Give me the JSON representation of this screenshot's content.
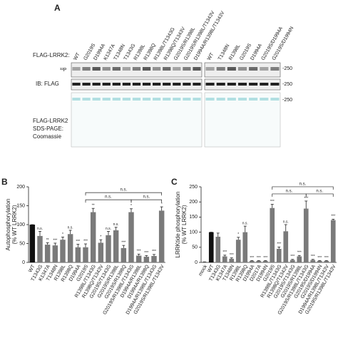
{
  "panel_a": {
    "label": "A",
    "row_label": "FLAG-LRRK2:",
    "p32": "³²P",
    "ib": "IB: FLAG",
    "coomassie": [
      "FLAG-LRRK2",
      "SDS-PAGE:",
      "Coomassie"
    ],
    "marker": "-250",
    "left_lanes": [
      "WT",
      "G2019S",
      "D1994A",
      "K1347A",
      "T1348N",
      "T1343G",
      "R1398L",
      "R1398Q",
      "R1398L/T1343G",
      "R1398Q/T1343V",
      "G2019S/R1398L",
      "G2019S/R1398L/T1343V",
      "D1994A/R1398L/T1343V"
    ],
    "right_lanes": [
      "WT",
      "T1348N",
      "R1398L",
      "G2019S",
      "D1994A",
      "G2019S/D1994A",
      "G2019S/D1994N"
    ]
  },
  "chart_data": [
    {
      "type": "bar",
      "label": "B",
      "ylabel": [
        "Autophosphorylation",
        "(% WT LRRK2)"
      ],
      "categories": [
        "WT",
        "T1343G",
        "K1347A",
        "T1348N",
        "R1398L",
        "R1398Q",
        "D1994A",
        "G2019S",
        "R1398L/T1343G",
        "R1398Q/T1343V",
        "G2019S/T1343G",
        "G2019S/R1398L",
        "G2019S/R1398Q",
        "G2019S/R1398L/T1343G",
        "D1994A/R1398L",
        "D1994A/R1398Q",
        "D1994A/R1398L/T1343G",
        "G2019S/R1398L/T1343V"
      ],
      "values": [
        100,
        70,
        47,
        45,
        60,
        75,
        40,
        40,
        133,
        52,
        72,
        85,
        38,
        133,
        18,
        15,
        17,
        137
      ],
      "errors": [
        0,
        12,
        5,
        6,
        7,
        10,
        8,
        9,
        10,
        8,
        10,
        8,
        7,
        9,
        4,
        3,
        4,
        10
      ],
      "significance": [
        "",
        "n.s.",
        "**",
        "***",
        "*",
        "n.s.",
        "***",
        "***",
        "**",
        "*",
        "n.s.",
        "n.s.",
        "***",
        "*",
        "***",
        "***",
        "***",
        "*"
      ],
      "colors": [
        "#111111",
        "#7a7a7a",
        "#7a7a7a",
        "#7a7a7a",
        "#7a7a7a",
        "#7a7a7a",
        "#7a7a7a",
        "#7a7a7a",
        "#7a7a7a",
        "#7a7a7a",
        "#7a7a7a",
        "#7a7a7a",
        "#7a7a7a",
        "#7a7a7a",
        "#7a7a7a",
        "#7a7a7a",
        "#7a7a7a",
        "#7a7a7a"
      ],
      "brackets": [
        {
          "from": "G2019S",
          "to": "G2019S/R1398L/T1343G",
          "text": "n.s."
        },
        {
          "from": "G2019S",
          "to": "G2019S/R1398L/T1343V",
          "text": "n.s."
        },
        {
          "from": "G2019S/R1398L/T1343G",
          "to": "G2019S/R1398L/T1343V",
          "text": "n.s."
        }
      ],
      "ylim": [
        0,
        200
      ],
      "yticks": [
        0,
        50,
        100,
        150,
        200
      ]
    },
    {
      "type": "bar",
      "label": "C",
      "ylabel": [
        "LRRKtide phosphorylation",
        "(% WT LRRK2)"
      ],
      "categories": [
        "mock",
        "WT",
        "T1343G",
        "K1347A",
        "T1348N",
        "R1398L",
        "R1398Q",
        "D1994A",
        "D2017A",
        "D1994N",
        "G2019S",
        "R1398L/T1343G",
        "R1398Q/T1343V",
        "G2019S/T1343G",
        "G2019S/R1398L",
        "G2019S/R1398L/T1343G",
        "G2019S/D1994A",
        "G2019S/D1994N",
        "D1994A/R1398L/T1343V",
        "G2019S/R1398L/T1343V"
      ],
      "values": [
        2,
        100,
        85,
        20,
        12,
        75,
        100,
        5,
        5,
        5,
        180,
        45,
        103,
        8,
        20,
        178,
        8,
        5,
        5,
        140
      ],
      "errors": [
        0,
        0,
        12,
        4,
        3,
        8,
        20,
        1,
        1,
        1,
        12,
        6,
        22,
        2,
        3,
        25,
        2,
        1,
        1,
        3
      ],
      "significance": [
        "",
        "",
        "",
        "***",
        "***",
        "*",
        "n.s.",
        "***",
        "***",
        "***",
        "***",
        "***",
        "n.s.",
        "***",
        "***",
        "***",
        "***",
        "***",
        "***",
        "***"
      ],
      "colors": [
        "#7a7a7a",
        "#111111",
        "#7a7a7a",
        "#7a7a7a",
        "#7a7a7a",
        "#7a7a7a",
        "#7a7a7a",
        "#7a7a7a",
        "#7a7a7a",
        "#7a7a7a",
        "#7a7a7a",
        "#7a7a7a",
        "#7a7a7a",
        "#7a7a7a",
        "#7a7a7a",
        "#7a7a7a",
        "#7a7a7a",
        "#7a7a7a",
        "#7a7a7a",
        "#7a7a7a"
      ],
      "brackets": [
        {
          "from": "G2019S",
          "to": "G2019S/R1398L/T1343G",
          "text": "n.s."
        },
        {
          "from": "G2019S",
          "to": "G2019S/R1398L/T1343V",
          "text": "n.s."
        },
        {
          "from": "G2019S/R1398L/T1343G",
          "to": "G2019S/R1398L/T1343V",
          "text": "n.s."
        }
      ],
      "ylim": [
        0,
        250
      ],
      "yticks": [
        0,
        50,
        100,
        150,
        200,
        250
      ]
    }
  ]
}
